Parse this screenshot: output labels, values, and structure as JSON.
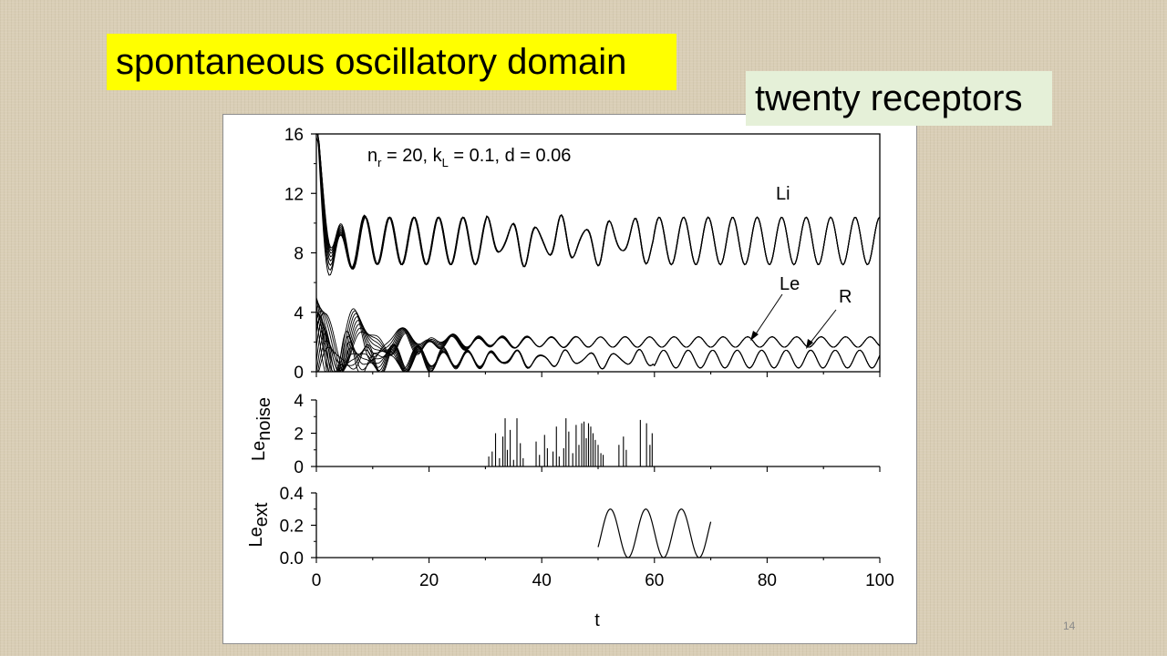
{
  "slide": {
    "title": "spontaneous oscillatory domain",
    "subtitle": "twenty receptors",
    "page_number": "14"
  },
  "chart_data": [
    {
      "type": "line",
      "panel": "top",
      "annotation": {
        "n": "n",
        "n_sub": "r",
        "mid": " = 20, k",
        "k_sub": "L",
        "tail": " = 0.1, d = 0.06"
      },
      "xlim": [
        0,
        100
      ],
      "ylim": [
        0,
        16
      ],
      "yticks": [
        "0",
        "4",
        "8",
        "12",
        "16"
      ],
      "series": [
        {
          "name": "Li",
          "baseline": 8.8,
          "amplitude": 1.6,
          "period": 4.35,
          "initial_peak": 16
        },
        {
          "name": "Le",
          "baseline": 2.0,
          "amplitude": 0.35,
          "period": 4.35
        },
        {
          "name": "R",
          "baseline": 0.85,
          "amplitude": 0.6,
          "period": 4.35
        }
      ]
    },
    {
      "type": "bar",
      "panel": "middle",
      "ylabel": "Le",
      "ylabel_sub": "noise",
      "xlim": [
        0,
        100
      ],
      "ylim": [
        0,
        4
      ],
      "yticks": [
        "0",
        "2",
        "4"
      ],
      "spikes_x": [
        30.6,
        31.2,
        31.8,
        32.5,
        33.1,
        33.5,
        33.9,
        34.4,
        35.0,
        35.6,
        36.2,
        36.7,
        39.0,
        39.6,
        40.5,
        41.0,
        42.0,
        42.6,
        43.1,
        43.9,
        44.3,
        44.8,
        45.5,
        46.1,
        46.6,
        47.1,
        47.5,
        47.9,
        48.3,
        48.7,
        49.1,
        49.5,
        50.0,
        50.5,
        50.9,
        53.7,
        54.5,
        55.0,
        57.5,
        58.6,
        59.2,
        59.6
      ],
      "spikes_y": [
        0.6,
        0.9,
        2.0,
        0.5,
        1.8,
        2.9,
        1.0,
        2.2,
        0.4,
        2.9,
        1.4,
        0.5,
        1.5,
        0.7,
        1.9,
        1.1,
        0.9,
        2.4,
        0.6,
        1.1,
        2.9,
        2.1,
        0.8,
        2.5,
        1.3,
        2.6,
        2.7,
        1.7,
        2.6,
        2.4,
        2.0,
        1.6,
        1.3,
        0.8,
        0.7,
        1.3,
        1.8,
        1.0,
        2.8,
        2.6,
        1.3,
        2.0
      ]
    },
    {
      "type": "line",
      "panel": "bottom",
      "ylabel": "Le",
      "ylabel_sub": "ext",
      "xlim": [
        0,
        100
      ],
      "ylim": [
        0.0,
        0.4
      ],
      "yticks": [
        "0.0",
        "0.2",
        "0.4"
      ],
      "xticks": [
        "0",
        "20",
        "40",
        "60",
        "80",
        "100"
      ],
      "xlabel": "t",
      "series": [
        {
          "x_start": 50,
          "x_end": 70,
          "center": 0.15,
          "amplitude": 0.15,
          "period": 6.3,
          "phase_at_start": -0.6
        }
      ]
    }
  ]
}
